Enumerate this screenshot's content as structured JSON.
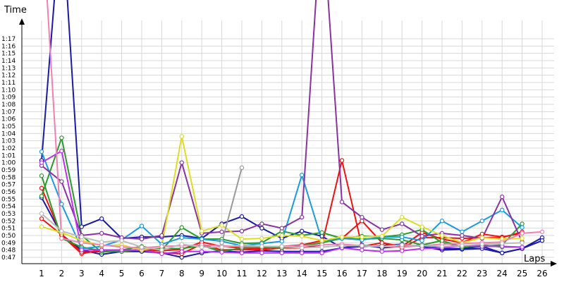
{
  "chart_data": {
    "type": "line",
    "title": "",
    "xlabel": "Laps",
    "ylabel": "Time",
    "grid": true,
    "legend": "none",
    "x": [
      1,
      2,
      3,
      4,
      5,
      6,
      7,
      8,
      9,
      10,
      11,
      12,
      13,
      14,
      15,
      16,
      17,
      18,
      19,
      20,
      21,
      22,
      23,
      24,
      25,
      26
    ],
    "xlim": [
      1,
      26
    ],
    "ylim": [
      46.2,
      78.6
    ],
    "y_ticks": [
      {
        "v": 47,
        "label": "0:47"
      },
      {
        "v": 48,
        "label": "0:48"
      },
      {
        "v": 49,
        "label": "0:49"
      },
      {
        "v": 50,
        "label": "0:50"
      },
      {
        "v": 51,
        "label": "0:51"
      },
      {
        "v": 52,
        "label": "0:52"
      },
      {
        "v": 53,
        "label": "0:53"
      },
      {
        "v": 54,
        "label": "0:54"
      },
      {
        "v": 55,
        "label": "0:55"
      },
      {
        "v": 56,
        "label": "0:56"
      },
      {
        "v": 57,
        "label": "0:57"
      },
      {
        "v": 58,
        "label": "0:58"
      },
      {
        "v": 59,
        "label": "0:59"
      },
      {
        "v": 60,
        "label": "1:00"
      },
      {
        "v": 61,
        "label": "1:01"
      },
      {
        "v": 62,
        "label": "1:02"
      },
      {
        "v": 63,
        "label": "1:03"
      },
      {
        "v": 64,
        "label": "1:04"
      },
      {
        "v": 65,
        "label": "1:05"
      },
      {
        "v": 66,
        "label": "1:06"
      },
      {
        "v": 67,
        "label": "1:07"
      },
      {
        "v": 68,
        "label": "1:08"
      },
      {
        "v": 69,
        "label": "1:09"
      },
      {
        "v": 70,
        "label": "1:10"
      },
      {
        "v": 71,
        "label": "1:11"
      },
      {
        "v": 72,
        "label": "1:12"
      },
      {
        "v": 73,
        "label": "1:13"
      },
      {
        "v": 74,
        "label": "1:14"
      },
      {
        "v": 75,
        "label": "1:15"
      },
      {
        "v": 76,
        "label": "1:16"
      },
      {
        "v": 77,
        "label": "1:17"
      }
    ],
    "series": [
      {
        "color": "#1a1aa6",
        "values": [
          60.3,
          95,
          51.2,
          52.3,
          49.6,
          49.8,
          49.8,
          50.0,
          49.6,
          51.6,
          52.6,
          51.0,
          49.6,
          50.6,
          49.9,
          48.3,
          48.5,
          48.6,
          48.8,
          48.5,
          48.0,
          48.1,
          48.2,
          47.6,
          48.2,
          49.7
        ]
      },
      {
        "color": "#1a1aa6",
        "values": [
          55.2,
          50.1,
          48.0,
          47.4,
          47.8,
          47.8,
          47.6,
          47.0,
          47.6,
          47.9,
          47.7,
          47.9,
          47.8,
          47.8,
          47.8,
          48.3,
          48.7,
          48.3,
          48.5,
          48.7,
          48.2,
          48.2,
          48.5,
          47.6,
          48.2,
          49.3
        ]
      },
      {
        "color": "#ee1111",
        "values": [
          56.5,
          50.0,
          47.5,
          48.0,
          48.0,
          48.0,
          47.6,
          47.5,
          48.8,
          48.0,
          48.1,
          48.0,
          48.3,
          48.3,
          48.7,
          60.3,
          48.5,
          49.0,
          48.5,
          50.4,
          49.5,
          49.0,
          50.2,
          49.8,
          50.3,
          null
        ]
      },
      {
        "color": "#ee1111",
        "values": [
          52.3,
          50.1,
          47.7,
          47.8,
          47.8,
          48.1,
          47.9,
          48.1,
          49.1,
          48.5,
          48.3,
          48.2,
          48.5,
          48.7,
          49.3,
          49.6,
          52.0,
          49.0,
          48.3,
          49.7,
          49.7,
          49.6,
          49.7,
          49.7,
          50.5,
          null
        ]
      },
      {
        "color": "#2a9a2a",
        "values": [
          55.4,
          63.4,
          50.0,
          47.7,
          48.0,
          48.5,
          48.0,
          51.1,
          49.5,
          49.5,
          48.9,
          49.0,
          50.6,
          50.0,
          50.4,
          49.6,
          49.9,
          49.8,
          50.1,
          50.8,
          49.0,
          48.5,
          48.5,
          48.7,
          51.6,
          null
        ]
      },
      {
        "color": "#2a9a2a",
        "values": [
          58.2,
          49.6,
          48.4,
          47.9,
          47.8,
          48.1,
          48.2,
          48.2,
          48.6,
          47.8,
          48.3,
          48.4,
          48.3,
          48.6,
          49.0,
          49.6,
          49.5,
          49.6,
          49.4,
          48.7,
          49.3,
          48.4,
          48.7,
          48.4,
          48.4,
          null
        ]
      },
      {
        "color": "#1a9ae0",
        "values": [
          61.5,
          54.3,
          48.2,
          48.5,
          49.4,
          51.3,
          48.8,
          49.7,
          49.5,
          49.2,
          48.6,
          48.9,
          49.2,
          58.3,
          49.3,
          49.6,
          49.4,
          49.8,
          49.8,
          49.3,
          52.0,
          50.5,
          52.0,
          53.5,
          51.1,
          null
        ]
      },
      {
        "color": "#8a33a0",
        "values": [
          59.6,
          57.4,
          50.0,
          50.3,
          49.7,
          49.5,
          50.0,
          60.0,
          50.3,
          50.5,
          50.6,
          51.6,
          51.0,
          52.5,
          95,
          54.6,
          52.5,
          50.8,
          51.6,
          49.9,
          50.3,
          50.0,
          49.6,
          55.3,
          49.1,
          null
        ]
      },
      {
        "color": "#bb33ee",
        "values": [
          60.0,
          61.6,
          48.0,
          48.0,
          48.0,
          48.0,
          47.5,
          47.8,
          47.8,
          47.7,
          47.6,
          47.6,
          47.6,
          47.6,
          47.6,
          48.3,
          48.0,
          47.8,
          47.9,
          48.2,
          48.3,
          48.6,
          48.5,
          48.5,
          48.4,
          null
        ]
      },
      {
        "color": "#dddd22",
        "values": [
          51.2,
          50.4,
          49.3,
          48.6,
          48.7,
          48.0,
          48.5,
          63.6,
          50.6,
          51.4,
          49.5,
          49.6,
          50.0,
          49.9,
          49.3,
          49.8,
          49.8,
          49.9,
          52.5,
          51.2,
          50.0,
          49.0,
          49.7,
          49.5,
          49.6,
          null
        ]
      },
      {
        "color": "#f080b0",
        "values": [
          95,
          49.6,
          49.0,
          48.7,
          48.4,
          48.3,
          48.5,
          48.6,
          48.7,
          48.6,
          48.5,
          48.5,
          48.5,
          48.6,
          48.7,
          48.8,
          48.6,
          48.5,
          48.4,
          48.6,
          48.8,
          48.9,
          49.0,
          49.1,
          50.3,
          50.5
        ]
      },
      {
        "color": "#999999",
        "values": [
          null,
          null,
          null,
          null,
          null,
          null,
          null,
          null,
          null,
          49.0,
          59.3,
          null,
          null,
          null,
          null,
          null,
          null,
          null,
          null,
          null,
          null,
          null,
          null,
          null,
          null,
          null
        ]
      },
      {
        "color": "#bbbbbb",
        "values": [
          53.0,
          50.6,
          49.8,
          49.1,
          49.3,
          48.4,
          48.0,
          48.8,
          48.4,
          48.4,
          48.7,
          48.5,
          48.5,
          48.3,
          48.4,
          48.6,
          48.6,
          48.5,
          48.7,
          48.6,
          48.5,
          48.6,
          48.8,
          48.9,
          49.0,
          null
        ]
      }
    ]
  }
}
